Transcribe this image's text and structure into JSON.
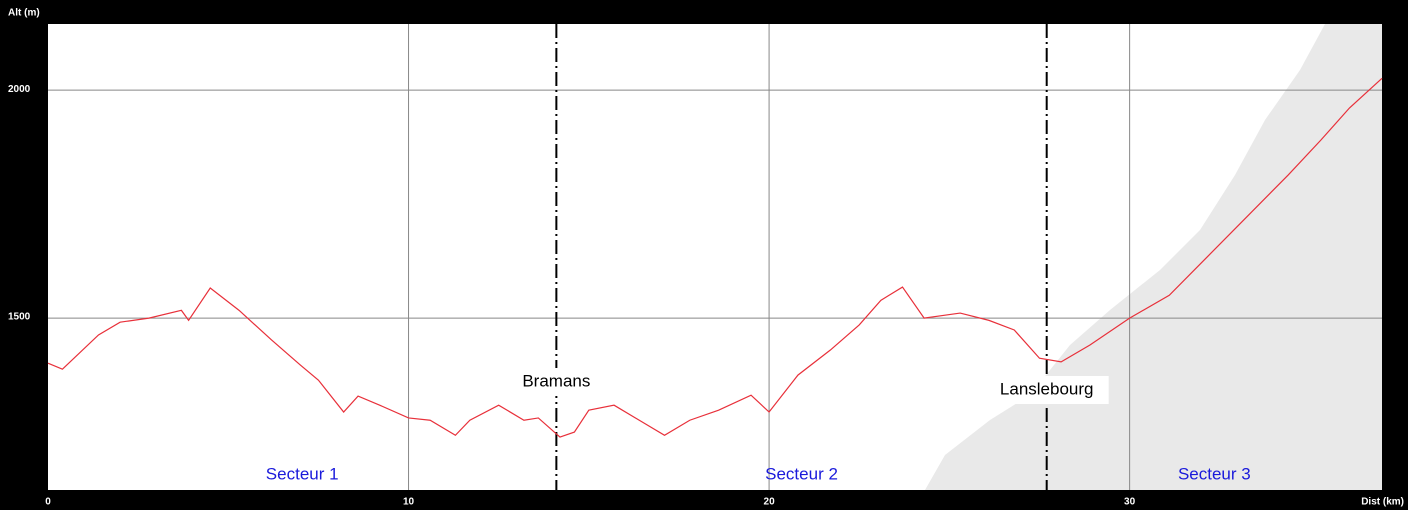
{
  "chart_data": {
    "type": "line",
    "y_label": "Alt (m)",
    "x_label": "Dist (km)",
    "x": [
      0,
      0.4,
      1.4,
      2.0,
      2.8,
      3.7,
      3.9,
      4.5,
      5.3,
      6.2,
      7.0,
      7.5,
      8.2,
      8.6,
      9.2,
      10.0,
      10.6,
      11.3,
      11.7,
      12.5,
      13.2,
      13.6,
      14.2,
      14.6,
      15.0,
      15.7,
      16.4,
      17.1,
      17.8,
      18.6,
      19.5,
      20.0,
      20.8,
      21.7,
      22.5,
      23.1,
      23.7,
      24.3,
      25.3,
      26.1,
      26.8,
      27.5,
      28.1,
      28.9,
      30.0,
      31.1,
      32.2,
      33.3,
      34.4,
      35.3,
      36.1,
      37.0
    ],
    "series": [
      {
        "color": "#e8303a",
        "values": [
          1401,
          1388,
          1463,
          1491,
          1500,
          1517,
          1495,
          1566,
          1517,
          1452,
          1397,
          1364,
          1294,
          1329,
          1309,
          1281,
          1276,
          1243,
          1276,
          1309,
          1276,
          1281,
          1239,
          1250,
          1298,
          1309,
          1276,
          1243,
          1276,
          1298,
          1331,
          1294,
          1375,
          1430,
          1485,
          1539,
          1568,
          1500,
          1511,
          1495,
          1474,
          1412,
          1404,
          1441,
          1500,
          1550,
          1638,
          1726,
          1814,
          1890,
          1961,
          2026
        ]
      }
    ],
    "xlim": [
      0,
      37
    ],
    "ylim": [
      1123,
      2145
    ],
    "xticks": [
      0,
      10,
      20,
      30
    ],
    "yticks": [
      1500,
      2000
    ],
    "grid": true,
    "markers": [
      {
        "label": "Bramans",
        "x": 14.1
      },
      {
        "label": "Lanslebourg",
        "x": 27.7
      }
    ],
    "sectors": [
      "Secteur 1",
      "Secteur 2",
      "Secteur 3"
    ]
  }
}
